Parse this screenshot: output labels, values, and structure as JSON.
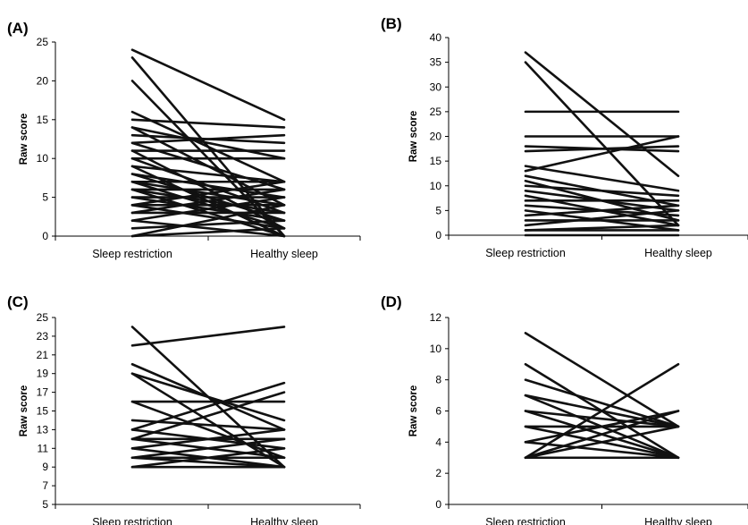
{
  "chart_data": [
    {
      "panel_label": "(A)",
      "type": "line",
      "categories": [
        "Sleep restriction",
        "Healthy sleep"
      ],
      "ylabel": "Raw score",
      "ylim": [
        0,
        25
      ],
      "yticks": [
        0,
        5,
        10,
        15,
        20,
        25
      ],
      "grid": false,
      "series_pairs": [
        [
          24,
          15
        ],
        [
          23,
          0
        ],
        [
          20,
          0
        ],
        [
          16,
          7
        ],
        [
          15,
          14
        ],
        [
          14,
          10
        ],
        [
          14,
          4
        ],
        [
          13,
          12
        ],
        [
          12,
          13
        ],
        [
          12,
          6
        ],
        [
          11,
          1
        ],
        [
          11,
          11
        ],
        [
          10,
          10
        ],
        [
          10,
          3
        ],
        [
          9,
          7
        ],
        [
          9,
          0
        ],
        [
          8,
          5
        ],
        [
          8,
          2
        ],
        [
          7,
          7
        ],
        [
          7,
          4
        ],
        [
          7,
          1
        ],
        [
          6,
          6
        ],
        [
          6,
          3
        ],
        [
          6,
          0
        ],
        [
          5,
          5
        ],
        [
          5,
          2
        ],
        [
          4,
          7
        ],
        [
          4,
          4
        ],
        [
          4,
          1
        ],
        [
          3,
          6
        ],
        [
          3,
          3
        ],
        [
          2,
          5
        ],
        [
          2,
          0
        ],
        [
          1,
          2
        ],
        [
          0,
          4
        ],
        [
          0,
          1
        ]
      ]
    },
    {
      "panel_label": "(B)",
      "type": "line",
      "categories": [
        "Sleep restriction",
        "Healthy sleep"
      ],
      "ylabel": "Raw score",
      "ylim": [
        0,
        40
      ],
      "yticks": [
        0,
        5,
        10,
        15,
        20,
        25,
        30,
        35,
        40
      ],
      "grid": false,
      "series_pairs": [
        [
          37,
          12
        ],
        [
          35,
          2
        ],
        [
          25,
          25
        ],
        [
          20,
          20
        ],
        [
          18,
          17
        ],
        [
          17,
          18
        ],
        [
          13,
          20
        ],
        [
          14,
          9
        ],
        [
          12,
          6
        ],
        [
          11,
          3
        ],
        [
          10,
          8
        ],
        [
          9,
          5
        ],
        [
          8,
          2
        ],
        [
          7,
          7
        ],
        [
          6,
          4
        ],
        [
          5,
          1
        ],
        [
          4,
          6
        ],
        [
          3,
          3
        ],
        [
          2,
          5
        ],
        [
          1,
          2
        ],
        [
          1,
          1
        ],
        [
          0,
          0
        ]
      ]
    },
    {
      "panel_label": "(C)",
      "type": "line",
      "categories": [
        "Sleep restriction",
        "Healthy sleep"
      ],
      "ylabel": "Raw score",
      "ylim": [
        5,
        25
      ],
      "yticks": [
        5,
        7,
        9,
        11,
        13,
        15,
        17,
        19,
        21,
        23,
        25
      ],
      "grid": false,
      "series_pairs": [
        [
          24,
          9
        ],
        [
          22,
          24
        ],
        [
          20,
          13
        ],
        [
          19,
          14
        ],
        [
          19,
          9
        ],
        [
          16,
          16
        ],
        [
          16,
          10
        ],
        [
          14,
          13
        ],
        [
          13,
          18
        ],
        [
          13,
          11
        ],
        [
          12,
          17
        ],
        [
          12,
          12
        ],
        [
          12,
          10
        ],
        [
          11,
          13
        ],
        [
          11,
          9
        ],
        [
          10,
          12
        ],
        [
          10,
          10
        ],
        [
          10,
          9
        ],
        [
          9,
          11
        ],
        [
          9,
          9
        ]
      ]
    },
    {
      "panel_label": "(D)",
      "type": "line",
      "categories": [
        "Sleep restriction",
        "Healthy sleep"
      ],
      "ylabel": "Raw score",
      "ylim": [
        0,
        12
      ],
      "yticks": [
        0,
        2,
        4,
        6,
        8,
        10,
        12
      ],
      "grid": false,
      "series_pairs": [
        [
          11,
          5
        ],
        [
          9,
          3
        ],
        [
          8,
          5
        ],
        [
          7,
          5
        ],
        [
          7,
          3
        ],
        [
          6,
          5
        ],
        [
          6,
          3
        ],
        [
          5,
          5
        ],
        [
          5,
          3
        ],
        [
          4,
          6
        ],
        [
          4,
          3
        ],
        [
          3,
          9
        ],
        [
          3,
          6
        ],
        [
          3,
          5
        ],
        [
          3,
          3
        ]
      ]
    }
  ]
}
